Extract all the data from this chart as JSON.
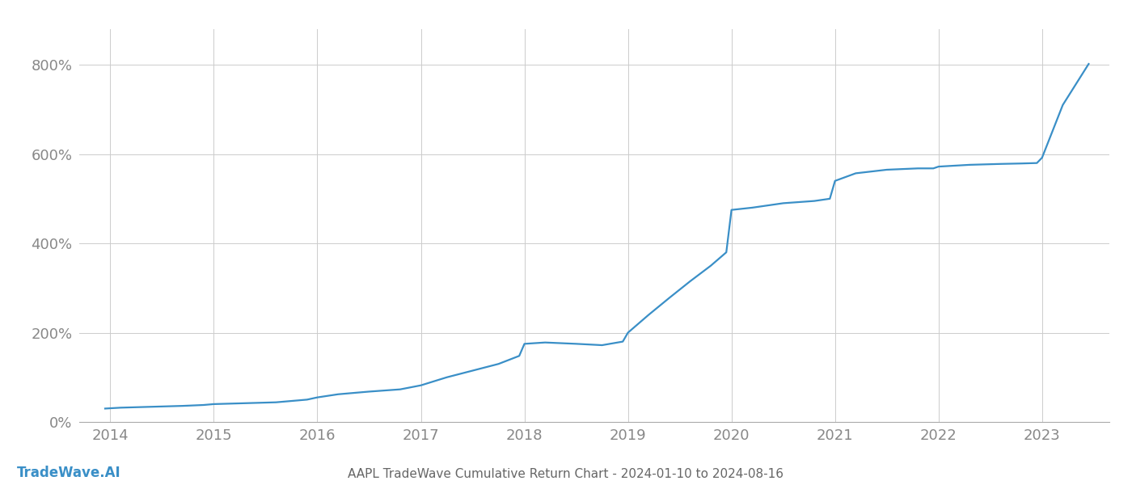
{
  "title": "AAPL TradeWave Cumulative Return Chart - 2024-01-10 to 2024-08-16",
  "watermark": "TradeWave.AI",
  "line_color": "#3a8fc7",
  "background_color": "#ffffff",
  "grid_color": "#cccccc",
  "x_years": [
    2014,
    2015,
    2016,
    2017,
    2018,
    2019,
    2020,
    2021,
    2022,
    2023
  ],
  "data_x": [
    2013.95,
    2014.1,
    2014.4,
    2014.7,
    2014.9,
    2015.0,
    2015.3,
    2015.6,
    2015.9,
    2016.0,
    2016.2,
    2016.5,
    2016.8,
    2017.0,
    2017.25,
    2017.5,
    2017.75,
    2017.95,
    2018.0,
    2018.2,
    2018.5,
    2018.75,
    2018.95,
    2019.0,
    2019.2,
    2019.4,
    2019.6,
    2019.8,
    2019.95,
    2020.0,
    2020.2,
    2020.5,
    2020.8,
    2020.95,
    2021.0,
    2021.2,
    2021.5,
    2021.8,
    2021.95,
    2022.0,
    2022.3,
    2022.6,
    2022.8,
    2022.95,
    2023.0,
    2023.2,
    2023.45
  ],
  "data_y": [
    30,
    32,
    34,
    36,
    38,
    40,
    42,
    44,
    50,
    55,
    62,
    68,
    73,
    82,
    100,
    115,
    130,
    148,
    175,
    178,
    175,
    172,
    180,
    200,
    240,
    278,
    315,
    350,
    380,
    475,
    480,
    490,
    495,
    500,
    540,
    557,
    565,
    568,
    568,
    572,
    576,
    578,
    579,
    580,
    592,
    710,
    802
  ],
  "ylim": [
    0,
    880
  ],
  "xlim": [
    2013.7,
    2023.65
  ],
  "yticks": [
    0,
    200,
    400,
    600,
    800
  ],
  "ytick_labels": [
    "0%",
    "200%",
    "400%",
    "600%",
    "800%"
  ],
  "title_fontsize": 11,
  "watermark_fontsize": 12,
  "tick_fontsize": 13,
  "line_width": 1.6,
  "tick_color": "#888888",
  "spine_color": "#aaaaaa"
}
